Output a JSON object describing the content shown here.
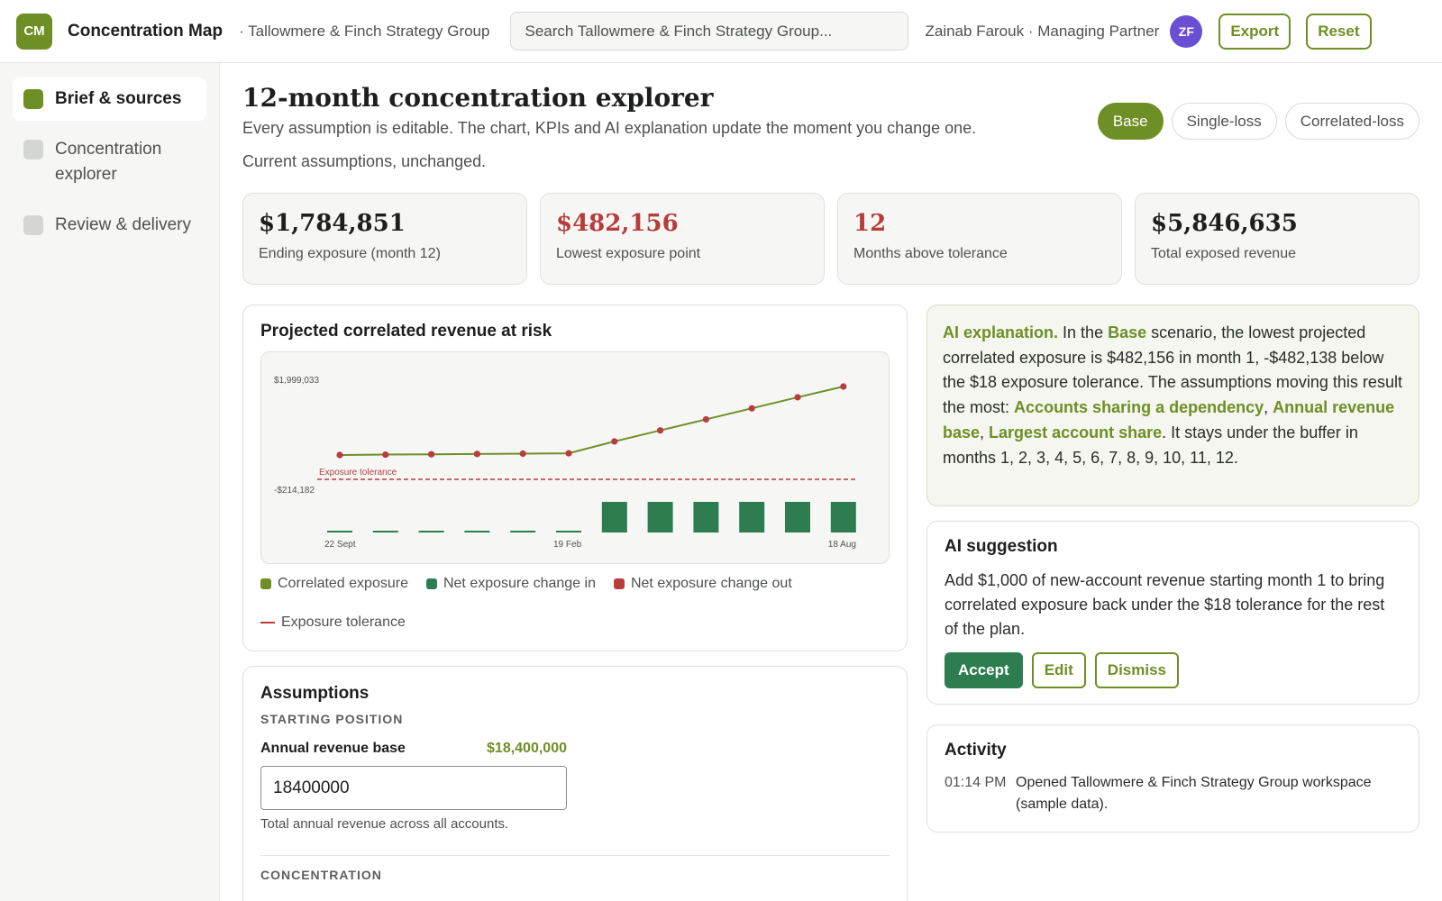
{
  "app": {
    "logo_initials": "CM",
    "name": "Concentration Map",
    "org": "· Tallowmere & Finch Strategy Group",
    "search_placeholder": "Search Tallowmere & Finch Strategy Group...",
    "user": "Zainab Farouk · Managing Partner",
    "user_initials": "ZF",
    "export_label": "Export",
    "reset_label": "Reset"
  },
  "sidebar": {
    "items": [
      {
        "label": "Brief & sources",
        "active": true
      },
      {
        "label": "Concentration explorer",
        "active": false
      },
      {
        "label": "Review & delivery",
        "active": false
      }
    ]
  },
  "page": {
    "title": "12-month concentration explorer",
    "subtitle": "Every assumption is editable. The chart, KPIs and AI explanation update the moment you change one.",
    "status": "Current assumptions, unchanged.",
    "scenarios": [
      "Base",
      "Single-loss",
      "Correlated-loss"
    ],
    "active_scenario": "Base"
  },
  "kpis": [
    {
      "value": "$1,784,851",
      "label": "Ending exposure (month 12)",
      "tone": "default"
    },
    {
      "value": "$482,156",
      "label": "Lowest exposure point",
      "tone": "red"
    },
    {
      "value": "12",
      "label": "Months above tolerance",
      "tone": "red"
    },
    {
      "value": "$5,846,635",
      "label": "Total exposed revenue",
      "tone": "default"
    }
  ],
  "chart": {
    "title": "Projected correlated revenue at risk",
    "legend": {
      "correlated": "Correlated exposure",
      "change_in": "Net exposure change in",
      "change_out": "Net exposure change out",
      "tolerance": "Exposure tolerance"
    }
  },
  "chart_data": {
    "type": "line",
    "x_tick_labels": [
      "22 Sept",
      "19 Feb",
      "18 Aug"
    ],
    "y_tick_labels": [
      "$1,999,033",
      "-$214,182"
    ],
    "ylim": [
      -214182,
      1999033
    ],
    "series": [
      {
        "name": "Correlated exposure",
        "type": "line",
        "color": "#6e8f25",
        "point_color": "#b73c3c",
        "values": [
          482156,
          490000,
          496000,
          502000,
          508000,
          515000,
          740000,
          950000,
          1160000,
          1370000,
          1580000,
          1784851
        ]
      },
      {
        "name": "Net exposure change in",
        "type": "bar",
        "color": "#2e7d50",
        "values": [
          8000,
          8000,
          8000,
          8000,
          8000,
          8000,
          210000,
          210000,
          210000,
          210000,
          210000,
          210000
        ]
      }
    ],
    "tolerance": {
      "label": "Exposure tolerance",
      "value": 18,
      "color": "#b73c3c",
      "style": "dashed"
    },
    "grid": false
  },
  "ai": {
    "label": "AI explanation.",
    "t1": "In the",
    "scenario": "Base",
    "t2": "scenario, the lowest projected correlated exposure is $482,156 in month 1, -$482,138 below the $18 exposure tolerance. The assumptions moving this result the most:",
    "d1": "Accounts sharing a dependency",
    "d2": "Annual revenue base",
    "d3": "Largest account share",
    "t3": "It stays under the buffer in months 1, 2, 3, 4, 5, 6, 7, 8, 9, 10, 11, 12."
  },
  "suggestion": {
    "title": "AI suggestion",
    "text": "Add $1,000 of new-account revenue starting month 1 to bring correlated exposure back under the $18 tolerance for the rest of the plan.",
    "accept": "Accept",
    "edit": "Edit",
    "dismiss": "Dismiss"
  },
  "activity": {
    "title": "Activity",
    "items": [
      {
        "time": "01:14 PM",
        "text": "Opened Tallowmere & Finch Strategy Group workspace (sample data)."
      }
    ]
  },
  "assumptions": {
    "title": "Assumptions",
    "section1": "STARTING POSITION",
    "field_label": "Annual revenue base",
    "field_display": "$18,400,000",
    "field_value": "18400000",
    "field_help": "Total annual revenue across all accounts.",
    "section2": "CONCENTRATION"
  },
  "colors": {
    "accent": "#6e8f25",
    "positive": "#2e7d50",
    "negative": "#b73c3c",
    "avatar": "#6a4fd4"
  }
}
